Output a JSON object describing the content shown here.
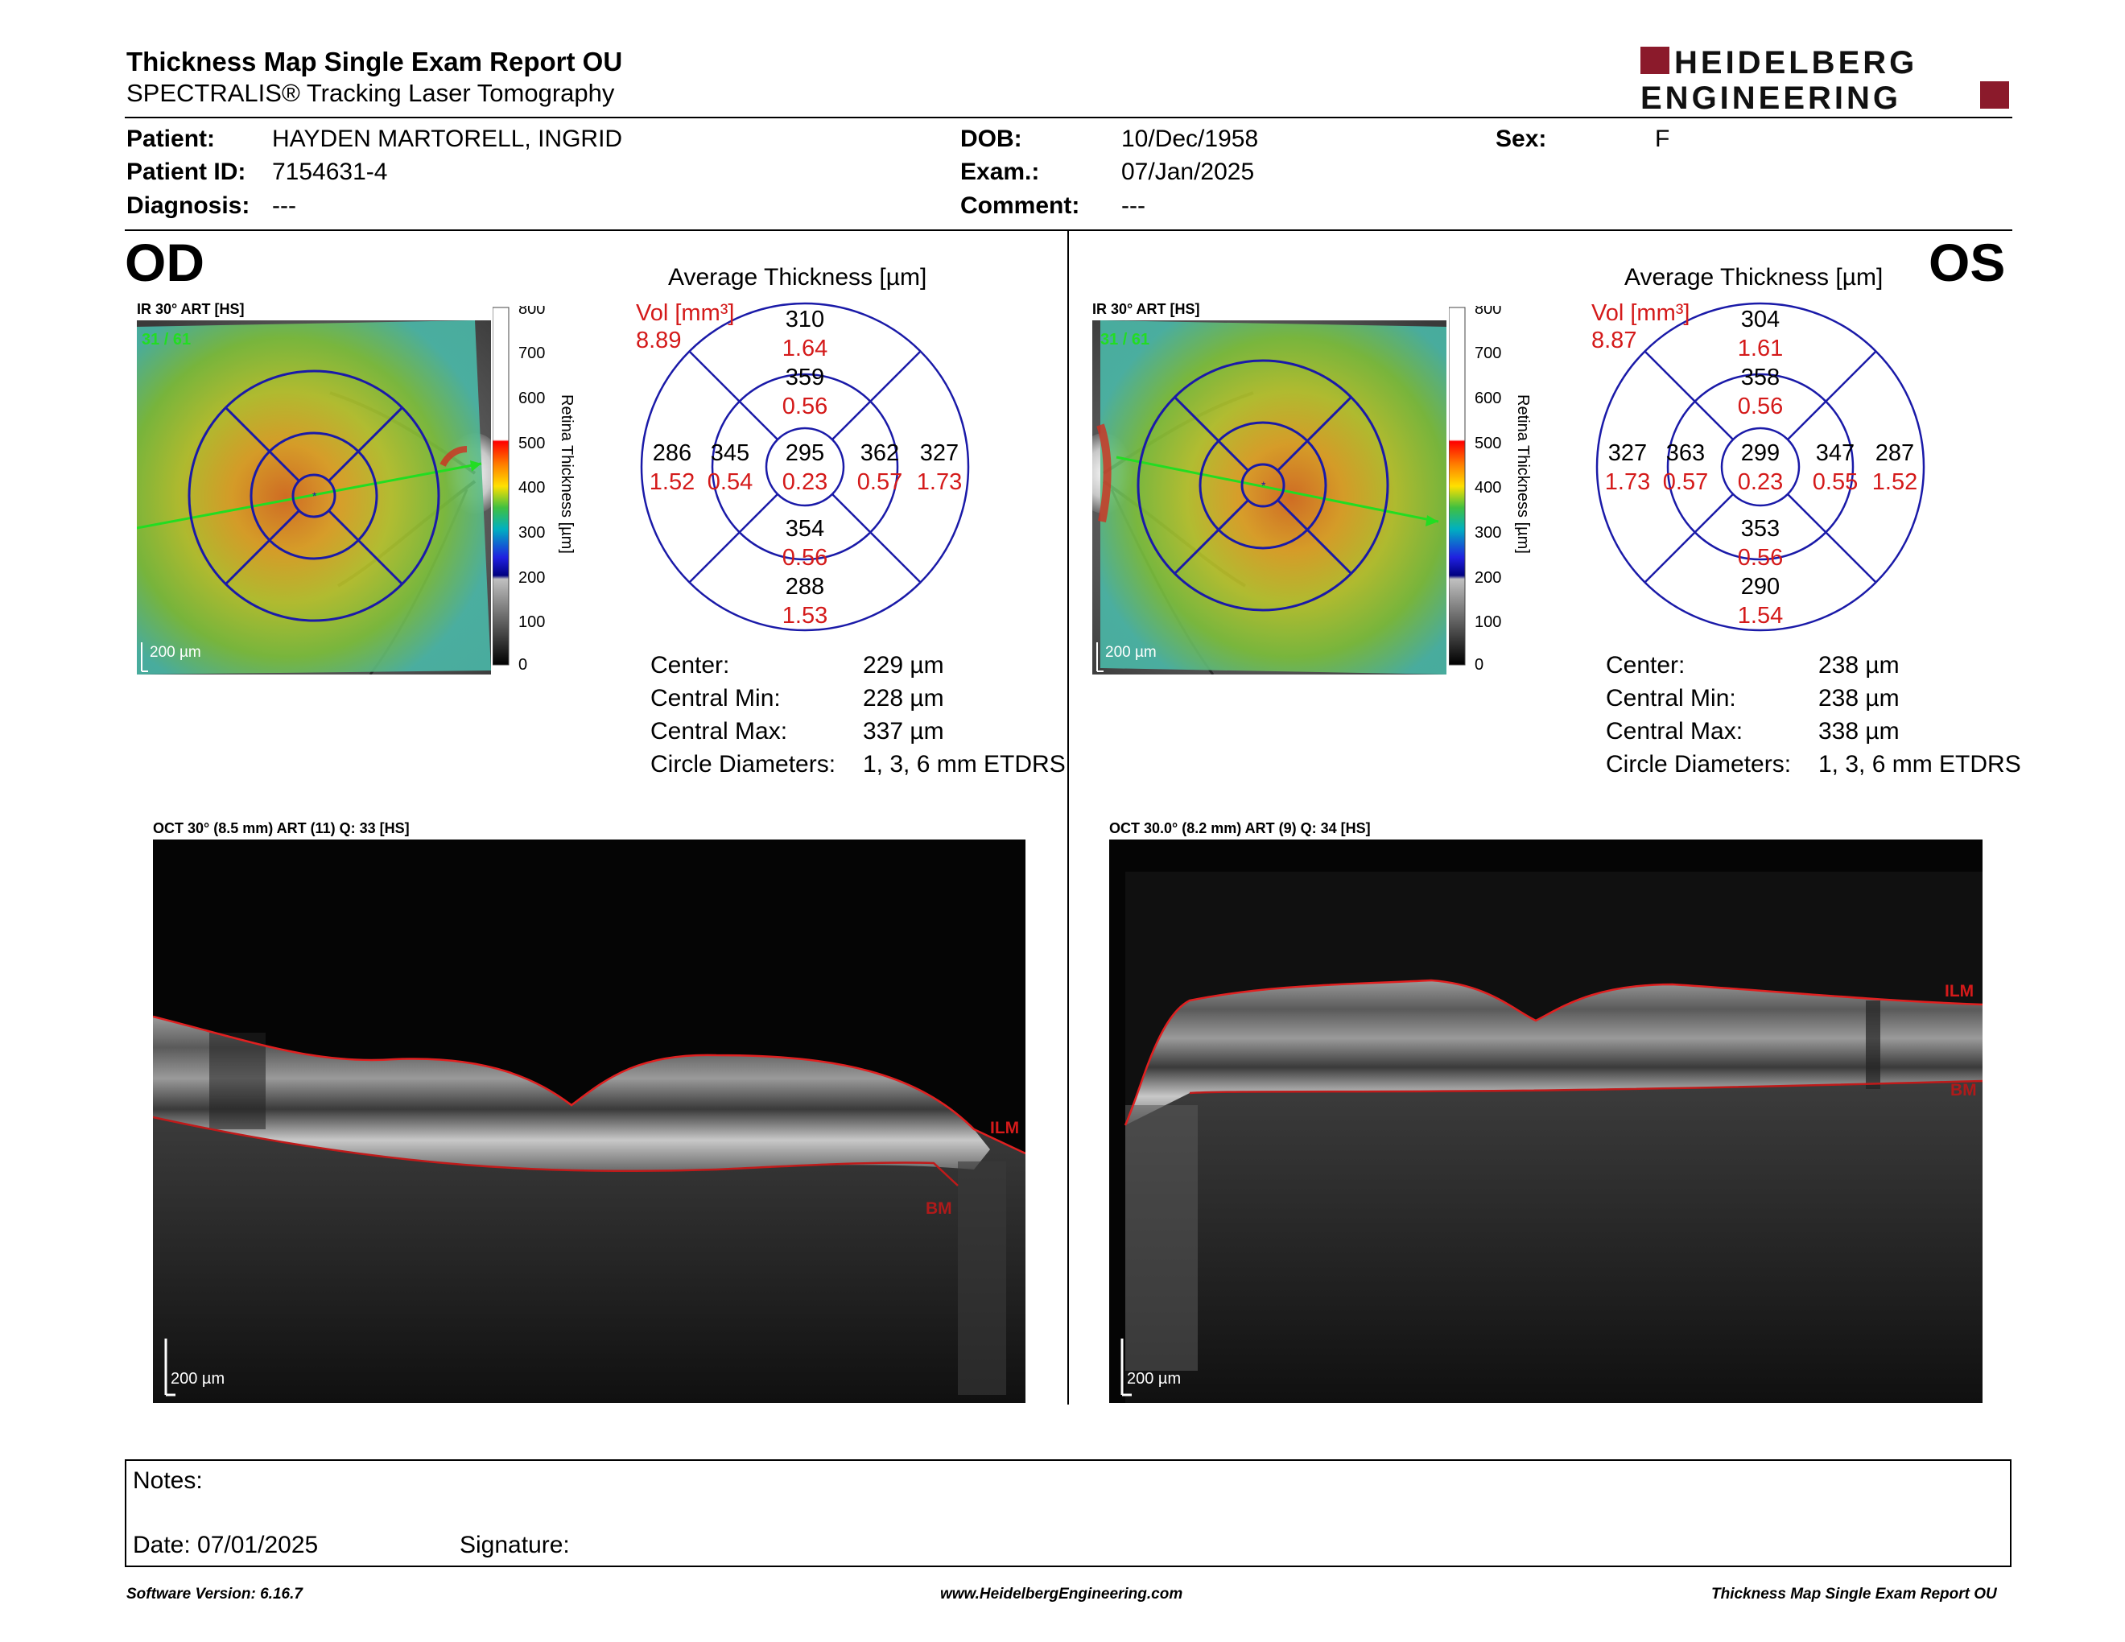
{
  "header": {
    "title": "Thickness Map Single Exam Report OU",
    "subtitle": "SPECTRALIS® Tracking Laser Tomography",
    "logo_line1": "HEIDELBERG",
    "logo_line2": "ENGINEERING",
    "brand_color": "#8b1a2b"
  },
  "patient": {
    "patient_label": "Patient:",
    "patient_value": "HAYDEN MARTORELL, INGRID",
    "id_label": "Patient ID:",
    "id_value": "7154631-4",
    "diagnosis_label": "Diagnosis:",
    "diagnosis_value": "---",
    "dob_label": "DOB:",
    "dob_value": "10/Dec/1958",
    "exam_label": "Exam.:",
    "exam_value": "07/Jan/2025",
    "comment_label": "Comment:",
    "comment_value": "---",
    "sex_label": "Sex:",
    "sex_value": "F"
  },
  "od": {
    "eye": "OD",
    "ir_caption": "IR 30° ART [HS]",
    "frames": "31 / 61",
    "scale": "200 µm",
    "colorbar_ticks": [
      "800",
      "700",
      "600",
      "500",
      "400",
      "300",
      "200",
      "100",
      "0"
    ],
    "colorbar_label": "Retina Thickness [µm]",
    "avg_title": "Average Thickness [µm]",
    "vol_label": "Vol [mm³]",
    "vol_value": "8.89",
    "grid": {
      "center_t": "295",
      "center_v": "0.23",
      "inner_sup_t": "359",
      "inner_sup_v": "0.56",
      "inner_inf_t": "354",
      "inner_inf_v": "0.56",
      "inner_left_t": "345",
      "inner_left_v": "0.54",
      "inner_right_t": "362",
      "inner_right_v": "0.57",
      "outer_sup_t": "310",
      "outer_sup_v": "1.64",
      "outer_inf_t": "288",
      "outer_inf_v": "1.53",
      "outer_left_t": "286",
      "outer_left_v": "1.52",
      "outer_right_t": "327",
      "outer_right_v": "1.73"
    },
    "stats": {
      "center_label": "Center:",
      "center_value": "229 µm",
      "cmin_label": "Central Min:",
      "cmin_value": "228 µm",
      "cmax_label": "Central Max:",
      "cmax_value": "337 µm",
      "diam_label": "Circle Diameters:",
      "diam_value": "1, 3, 6 mm ETDRS"
    },
    "oct_caption": "OCT 30° (8.5 mm) ART (11) Q: 33 [HS]",
    "ilm": "ILM",
    "bm": "BM"
  },
  "os": {
    "eye": "OS",
    "ir_caption": "IR 30° ART [HS]",
    "frames": "31 / 61",
    "scale": "200 µm",
    "colorbar_ticks": [
      "800",
      "700",
      "600",
      "500",
      "400",
      "300",
      "200",
      "100",
      "0"
    ],
    "colorbar_label": "Retina Thickness [µm]",
    "avg_title": "Average Thickness [µm]",
    "vol_label": "Vol [mm³]",
    "vol_value": "8.87",
    "grid": {
      "center_t": "299",
      "center_v": "0.23",
      "inner_sup_t": "358",
      "inner_sup_v": "0.56",
      "inner_inf_t": "353",
      "inner_inf_v": "0.56",
      "inner_left_t": "363",
      "inner_left_v": "0.57",
      "inner_right_t": "347",
      "inner_right_v": "0.55",
      "outer_sup_t": "304",
      "outer_sup_v": "1.61",
      "outer_inf_t": "290",
      "outer_inf_v": "1.54",
      "outer_left_t": "327",
      "outer_left_v": "1.73",
      "outer_right_t": "287",
      "outer_right_v": "1.52"
    },
    "stats": {
      "center_label": "Center:",
      "center_value": "238 µm",
      "cmin_label": "Central Min:",
      "cmin_value": "238 µm",
      "cmax_label": "Central Max:",
      "cmax_value": "338 µm",
      "diam_label": "Circle Diameters:",
      "diam_value": "1, 3, 6 mm ETDRS"
    },
    "oct_caption": "OCT 30.0° (8.2 mm) ART (9) Q: 34 [HS]",
    "ilm": "ILM",
    "bm": "BM"
  },
  "notes": {
    "notes_label": "Notes:",
    "date_label": "Date: 07/01/2025",
    "signature_label": "Signature:"
  },
  "footer": {
    "software": "Software Version: 6.16.7",
    "website": "www.HeidelbergEngineering.com",
    "report": "Thickness Map Single Exam Report OU"
  }
}
